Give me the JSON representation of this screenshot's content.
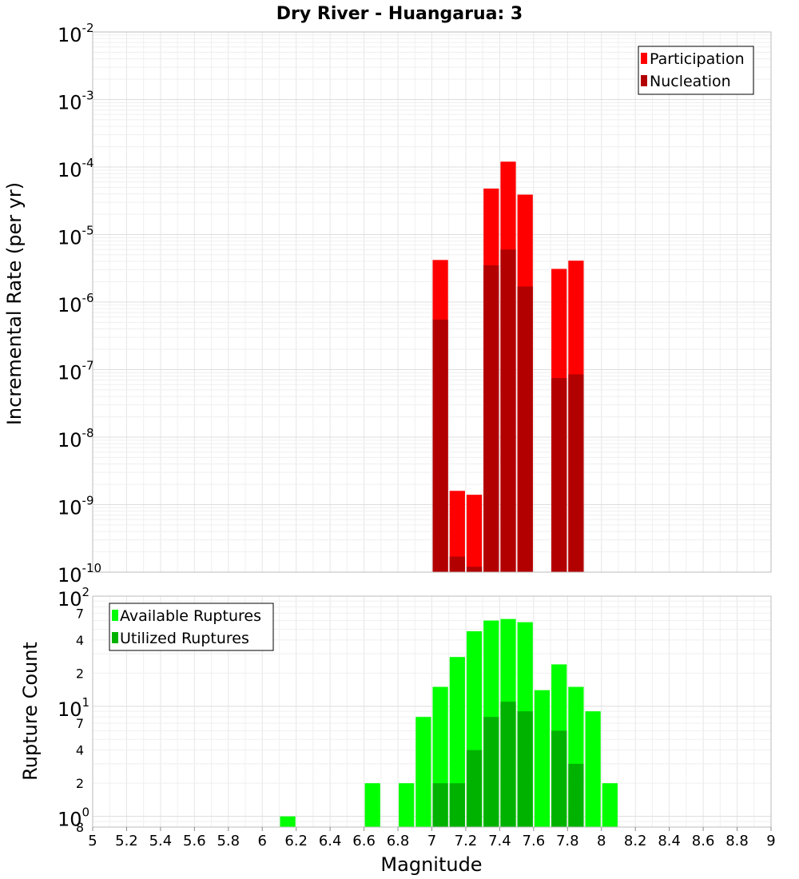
{
  "chart_data": [
    {
      "type": "bar",
      "title": "Dry River - Huangarua: 3",
      "xlabel": "",
      "ylabel": "Incremental Rate (per yr)",
      "yscale": "log",
      "ylim": [
        1e-10,
        0.01
      ],
      "xlim": [
        5,
        9
      ],
      "grid": true,
      "legend_position": "top-right",
      "bar_width": 0.1,
      "y_ticks": [
        {
          "base": "10",
          "exp": "-10"
        },
        {
          "base": "10",
          "exp": "-9"
        },
        {
          "base": "10",
          "exp": "-8"
        },
        {
          "base": "10",
          "exp": "-7"
        },
        {
          "base": "10",
          "exp": "-6"
        },
        {
          "base": "10",
          "exp": "-5"
        },
        {
          "base": "10",
          "exp": "-4"
        },
        {
          "base": "10",
          "exp": "-3"
        },
        {
          "base": "10",
          "exp": "-2"
        }
      ],
      "x": [
        7.05,
        7.15,
        7.25,
        7.35,
        7.45,
        7.55,
        7.75,
        7.85
      ],
      "series": [
        {
          "name": "Participation",
          "color": "#ff0000",
          "values": [
            4.2e-06,
            1.6e-09,
            1.4e-09,
            4.8e-05,
            0.00012,
            3.9e-05,
            3.1e-06,
            4.1e-06
          ]
        },
        {
          "name": "Nucleation",
          "color": "#b20000",
          "values": [
            5.5e-07,
            1.7e-10,
            1.2e-10,
            3.5e-06,
            6e-06,
            1.7e-06,
            7.5e-08,
            8.5e-08
          ]
        }
      ]
    },
    {
      "type": "bar",
      "title": "",
      "xlabel": "Magnitude",
      "ylabel": "Rupture Count",
      "yscale": "log",
      "ylim": [
        0.8,
        100
      ],
      "xlim": [
        5,
        9
      ],
      "grid": true,
      "legend_position": "top-left",
      "bar_width": 0.1,
      "x_ticks": [
        "5",
        "5.2",
        "5.4",
        "5.6",
        "5.8",
        "6",
        "6.2",
        "6.4",
        "6.6",
        "6.8",
        "7",
        "7.2",
        "7.4",
        "7.6",
        "7.8",
        "8",
        "8.2",
        "8.4",
        "8.6",
        "8.8",
        "9"
      ],
      "y_major_ticks": [
        {
          "base": "10",
          "exp": "0",
          "value": 1
        },
        {
          "base": "10",
          "exp": "1",
          "value": 10
        },
        {
          "base": "10",
          "exp": "2",
          "value": 100
        }
      ],
      "y_minor_ticks": [
        {
          "label": "8",
          "value": 0.8
        },
        {
          "label": "2",
          "value": 2
        },
        {
          "label": "4",
          "value": 4
        },
        {
          "label": "7",
          "value": 7
        },
        {
          "label": "2",
          "value": 20
        },
        {
          "label": "4",
          "value": 40
        },
        {
          "label": "7",
          "value": 70
        }
      ],
      "series": [
        {
          "name": "Available Ruptures",
          "color": "#00ff00",
          "x": [
            6.15,
            6.65,
            6.85,
            6.95,
            7.05,
            7.15,
            7.25,
            7.35,
            7.45,
            7.55,
            7.65,
            7.75,
            7.85,
            7.95,
            8.05
          ],
          "values": [
            1,
            2,
            2,
            8,
            15,
            28,
            48,
            60,
            62,
            58,
            14,
            24,
            15,
            9,
            2
          ]
        },
        {
          "name": "Utilized Ruptures",
          "color": "#00b200",
          "x": [
            7.05,
            7.15,
            7.25,
            7.35,
            7.45,
            7.55,
            7.75,
            7.85
          ],
          "values": [
            2,
            2,
            4,
            8,
            11,
            9,
            6,
            3
          ]
        }
      ]
    }
  ]
}
